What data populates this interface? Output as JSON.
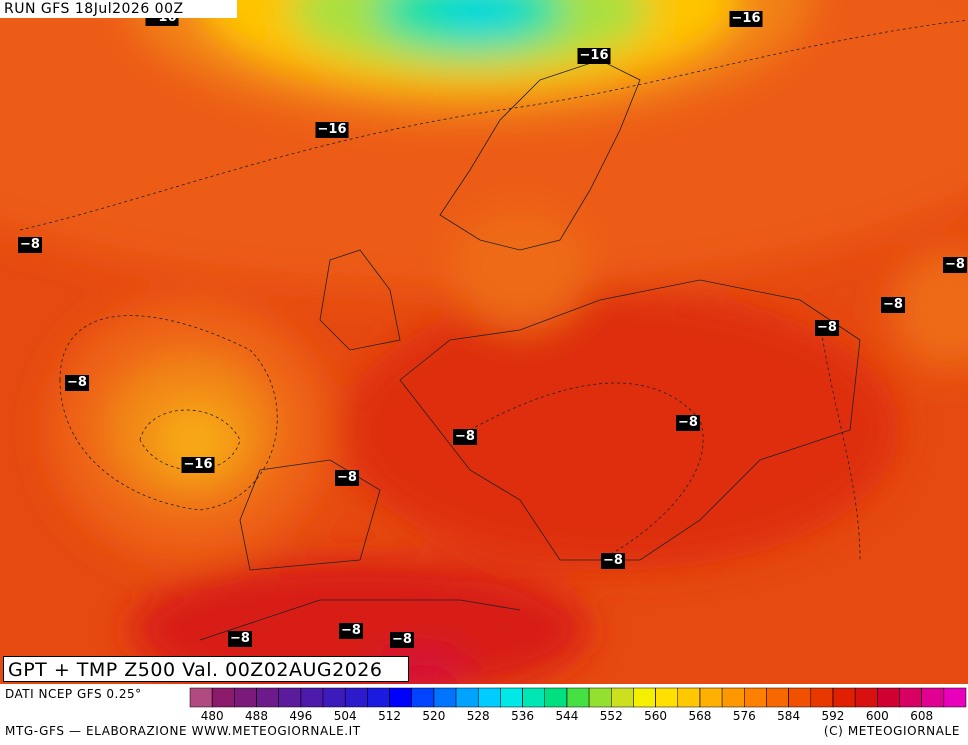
{
  "header": {
    "run": "RUN GFS 18Jul2026 00Z"
  },
  "map": {
    "contour_labels": [
      "−16",
      "−16",
      "−16",
      "−16",
      "−8",
      "−8",
      "−8",
      "−8",
      "−8",
      "−8",
      "−8",
      "−16",
      "−8",
      "−8",
      "−8",
      "−8",
      "−8"
    ]
  },
  "title": "GPT + TMP Z500 Val. 00Z02AUG2026",
  "colorbar": {
    "source": "DATI NCEP GFS 0.25°",
    "ticks": [
      480,
      488,
      496,
      504,
      512,
      520,
      528,
      536,
      544,
      552,
      560,
      568,
      576,
      584,
      592,
      600,
      608
    ]
  },
  "footer": {
    "left": "MTG-GFS — ELABORAZIONE WWW.METEOGIORNALE.IT",
    "right": "(C) METEOGIORNALE"
  }
}
